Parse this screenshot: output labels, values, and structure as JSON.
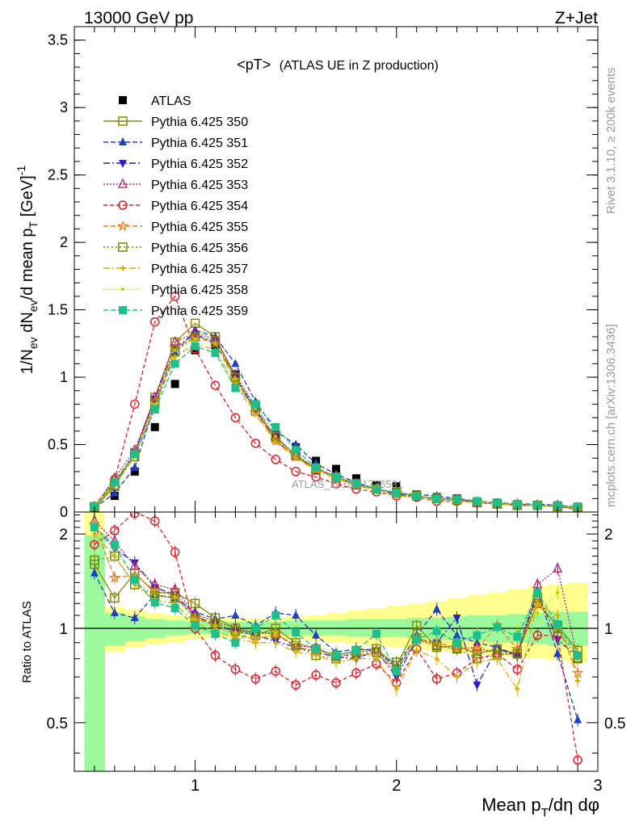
{
  "header": {
    "left": "13000 GeV pp",
    "right": "Z+Jet"
  },
  "side_labels": {
    "rivet": "Rivet 3.1.10, ≥ 200k events",
    "mcplots": "mcplots.cern.ch [arXiv:1306.3436]"
  },
  "watermark": "ATLAS_2019_I1736531",
  "chart_data": [
    {
      "type": "line",
      "panel": "main",
      "title": "<pT>",
      "subtitle": "(ATLAS UE in Z production)",
      "xlabel": "Mean p_T/dη dφ",
      "ylabel": "1/N_ev dN_ev/d mean p_T [GeV]^-1",
      "xlim": [
        0.4,
        3.0
      ],
      "ylim": [
        0,
        3.6
      ],
      "xticks": [
        1,
        2,
        3
      ],
      "yticks": [
        0,
        0.5,
        1,
        1.5,
        2,
        2.5,
        3,
        3.5
      ],
      "ytick_labels": [
        "0",
        "0.5",
        "1",
        "1.5",
        "2",
        "2.5",
        "3",
        "3.5"
      ],
      "legend_position": "top-left",
      "x": [
        0.5,
        0.6,
        0.7,
        0.8,
        0.9,
        1.0,
        1.1,
        1.2,
        1.3,
        1.4,
        1.5,
        1.6,
        1.7,
        1.8,
        1.9,
        2.0,
        2.1,
        2.2,
        2.3,
        2.4,
        2.5,
        2.6,
        2.7,
        2.8,
        2.9
      ],
      "data": {
        "name": "ATLAS",
        "color": "#000000",
        "values": [
          0.02,
          0.12,
          0.3,
          0.63,
          0.95,
          1.2,
          1.22,
          1.02,
          0.8,
          0.58,
          0.48,
          0.38,
          0.32,
          0.25,
          0.2,
          0.19,
          0.13,
          0.11,
          0.1,
          0.08,
          0.07,
          0.06,
          0.05,
          0.05,
          0.04
        ]
      },
      "series": [
        {
          "name": "Pythia 6.425 350",
          "color": "#8a8a00",
          "dash": "solid",
          "marker": "square-open",
          "values": [
            0.03,
            0.19,
            0.44,
            0.85,
            1.26,
            1.4,
            1.3,
            1.0,
            0.75,
            0.55,
            0.42,
            0.32,
            0.26,
            0.21,
            0.17,
            0.14,
            0.12,
            0.1,
            0.09,
            0.07,
            0.06,
            0.05,
            0.05,
            0.04,
            0.03
          ]
        },
        {
          "name": "Pythia 6.425 351",
          "color": "#1f3fbf",
          "dash": "6,3",
          "marker": "triangle-up",
          "values": [
            0.03,
            0.14,
            0.33,
            0.8,
            1.18,
            1.35,
            1.3,
            1.1,
            0.82,
            0.6,
            0.5,
            0.36,
            0.28,
            0.22,
            0.17,
            0.14,
            0.13,
            0.12,
            0.1,
            0.08,
            0.07,
            0.06,
            0.06,
            0.05,
            0.03
          ]
        },
        {
          "name": "Pythia 6.425 352",
          "color": "#2a1fbf",
          "dash": "8,3,2,3",
          "marker": "triangle-down",
          "values": [
            0.04,
            0.21,
            0.44,
            0.84,
            1.22,
            1.32,
            1.25,
            1.0,
            0.76,
            0.53,
            0.41,
            0.32,
            0.26,
            0.2,
            0.17,
            0.13,
            0.12,
            0.1,
            0.1,
            0.07,
            0.06,
            0.06,
            0.05,
            0.04,
            0.03
          ]
        },
        {
          "name": "Pythia 6.425 353",
          "color": "#b0207a",
          "dash": "2,2",
          "marker": "triangle-open",
          "values": [
            0.04,
            0.25,
            0.46,
            0.85,
            1.26,
            1.33,
            1.28,
            1.02,
            0.78,
            0.56,
            0.42,
            0.33,
            0.26,
            0.21,
            0.17,
            0.14,
            0.12,
            0.1,
            0.09,
            0.07,
            0.06,
            0.06,
            0.05,
            0.05,
            0.03
          ]
        },
        {
          "name": "Pythia 6.425 354",
          "color": "#e0202a",
          "dash": "5,3",
          "marker": "circle-open",
          "values": [
            0.04,
            0.24,
            0.8,
            1.41,
            1.6,
            1.21,
            0.94,
            0.7,
            0.51,
            0.39,
            0.3,
            0.26,
            0.21,
            0.17,
            0.15,
            0.12,
            0.11,
            0.08,
            0.08,
            0.07,
            0.06,
            0.05,
            0.05,
            0.04,
            0.02
          ]
        },
        {
          "name": "Pythia 6.425 355",
          "color": "#f07a1a",
          "dash": "6,3",
          "marker": "star-open",
          "values": [
            0.04,
            0.23,
            0.43,
            0.82,
            1.22,
            1.3,
            1.25,
            0.98,
            0.74,
            0.53,
            0.41,
            0.32,
            0.26,
            0.2,
            0.17,
            0.14,
            0.12,
            0.1,
            0.09,
            0.07,
            0.06,
            0.06,
            0.05,
            0.04,
            0.03
          ]
        },
        {
          "name": "Pythia 6.425 356",
          "color": "#6f8a00",
          "dash": "2,3",
          "marker": "square-open",
          "values": [
            0.04,
            0.2,
            0.41,
            0.8,
            1.19,
            1.3,
            1.27,
            1.0,
            0.78,
            0.56,
            0.42,
            0.31,
            0.25,
            0.2,
            0.17,
            0.15,
            0.12,
            0.1,
            0.09,
            0.07,
            0.06,
            0.05,
            0.05,
            0.04,
            0.03
          ]
        },
        {
          "name": "Pythia 6.425 357",
          "color": "#d4b000",
          "dash": "8,3,2,3",
          "marker": "tri-small",
          "values": [
            0.04,
            0.2,
            0.41,
            0.78,
            1.15,
            1.25,
            1.2,
            0.95,
            0.72,
            0.52,
            0.4,
            0.31,
            0.25,
            0.2,
            0.16,
            0.12,
            0.11,
            0.09,
            0.08,
            0.07,
            0.06,
            0.05,
            0.05,
            0.04,
            0.03
          ]
        },
        {
          "name": "Pythia 6.425 358",
          "color": "#b8d400",
          "dash": "1,3",
          "marker": "dot",
          "values": [
            0.04,
            0.22,
            0.43,
            0.8,
            1.2,
            1.28,
            1.25,
            0.99,
            0.77,
            0.56,
            0.43,
            0.33,
            0.27,
            0.21,
            0.17,
            0.14,
            0.12,
            0.1,
            0.09,
            0.08,
            0.06,
            0.06,
            0.05,
            0.05,
            0.03
          ]
        },
        {
          "name": "Pythia 6.425 359",
          "color": "#1fbf8a",
          "dash": "6,3",
          "marker": "square",
          "values": [
            0.04,
            0.22,
            0.43,
            0.76,
            1.1,
            1.23,
            1.18,
            0.92,
            0.8,
            0.63,
            0.46,
            0.33,
            0.26,
            0.21,
            0.17,
            0.14,
            0.12,
            0.1,
            0.09,
            0.08,
            0.07,
            0.06,
            0.05,
            0.05,
            0.04
          ]
        }
      ]
    },
    {
      "type": "line",
      "panel": "ratio",
      "ylabel": "Ratio to ATLAS",
      "xlabel": "Mean p_T/dη dφ",
      "xlim": [
        0.4,
        3.0
      ],
      "ylim": [
        0.35,
        2.35
      ],
      "xticks": [
        1,
        2,
        3
      ],
      "xtick_labels": [
        "1",
        "2",
        "3"
      ],
      "yticks": [
        0.5,
        1,
        2
      ],
      "ytick_labels": [
        "0.5",
        "1",
        "2"
      ],
      "reference_line": 1,
      "x_bins": [
        0.45,
        0.55,
        0.65,
        0.75,
        0.85,
        0.95,
        1.05,
        1.15,
        1.25,
        1.35,
        1.45,
        1.55,
        1.65,
        1.75,
        1.85,
        1.95,
        2.05,
        2.15,
        2.25,
        2.35,
        2.45,
        2.55,
        2.65,
        2.75,
        2.85,
        2.95
      ],
      "band_stat": {
        "color": "#9cfa9c",
        "low": [
          0.35,
          0.88,
          0.91,
          0.93,
          0.95,
          0.96,
          0.96,
          0.96,
          0.96,
          0.96,
          0.95,
          0.95,
          0.95,
          0.94,
          0.94,
          0.94,
          0.93,
          0.92,
          0.92,
          0.91,
          0.9,
          0.9,
          0.89,
          0.88,
          0.88
        ],
        "high": [
          1.98,
          1.12,
          1.09,
          1.07,
          1.06,
          1.05,
          1.05,
          1.05,
          1.05,
          1.05,
          1.06,
          1.06,
          1.06,
          1.07,
          1.07,
          1.07,
          1.08,
          1.08,
          1.09,
          1.1,
          1.1,
          1.11,
          1.12,
          1.13,
          1.13
        ]
      },
      "band_total": {
        "color": "#ffff90",
        "low": [
          0.35,
          0.84,
          0.87,
          0.89,
          0.9,
          0.92,
          0.93,
          0.93,
          0.93,
          0.93,
          0.92,
          0.91,
          0.9,
          0.89,
          0.88,
          0.87,
          0.86,
          0.85,
          0.84,
          0.83,
          0.82,
          0.81,
          0.8,
          0.79,
          0.78
        ],
        "high": [
          2.35,
          1.17,
          1.15,
          1.12,
          1.1,
          1.09,
          1.08,
          1.08,
          1.08,
          1.08,
          1.09,
          1.1,
          1.12,
          1.14,
          1.16,
          1.18,
          1.2,
          1.22,
          1.25,
          1.28,
          1.3,
          1.33,
          1.36,
          1.38,
          1.4
        ]
      },
      "x": [
        0.5,
        0.6,
        0.7,
        0.8,
        0.9,
        1.0,
        1.1,
        1.2,
        1.3,
        1.4,
        1.5,
        1.6,
        1.7,
        1.8,
        1.9,
        2.0,
        2.1,
        2.2,
        2.3,
        2.4,
        2.5,
        2.6,
        2.7,
        2.8,
        2.9
      ],
      "series": [
        {
          "name": "Pythia 6.425 350",
          "values": [
            1.6,
            1.25,
            1.5,
            1.3,
            1.3,
            1.2,
            1.08,
            1.0,
            0.95,
            1.0,
            0.9,
            0.86,
            0.82,
            0.85,
            0.86,
            0.76,
            1.02,
            0.87,
            0.88,
            0.83,
            0.86,
            0.83,
            1.2,
            1.02,
            0.85
          ]
        },
        {
          "name": "Pythia 6.425 351",
          "values": [
            1.5,
            1.12,
            1.08,
            1.28,
            1.25,
            1.13,
            1.07,
            1.1,
            1.02,
            1.12,
            1.1,
            0.95,
            0.84,
            0.86,
            0.85,
            0.75,
            0.95,
            1.15,
            0.95,
            0.9,
            0.87,
            0.82,
            1.32,
            0.83,
            0.51
          ]
        },
        {
          "name": "Pythia 6.425 352",
          "values": [
            2.1,
            1.8,
            1.62,
            1.35,
            1.28,
            1.1,
            1.02,
            0.98,
            0.95,
            0.91,
            0.87,
            0.84,
            0.81,
            0.8,
            0.85,
            0.7,
            0.92,
            0.9,
            1.08,
            0.66,
            0.86,
            0.82,
            1.3,
            0.92,
            0.81
          ]
        },
        {
          "name": "Pythia 6.425 353",
          "values": [
            2.2,
            1.9,
            1.58,
            1.38,
            1.33,
            1.11,
            1.05,
            1.0,
            0.97,
            0.96,
            0.88,
            0.87,
            0.81,
            0.84,
            0.85,
            0.74,
            0.92,
            0.88,
            0.86,
            0.87,
            0.83,
            0.83,
            1.38,
            1.55,
            0.8
          ]
        },
        {
          "name": "Pythia 6.425 354",
          "values": [
            1.85,
            2.05,
            2.35,
            2.2,
            1.75,
            1.0,
            0.82,
            0.74,
            0.69,
            0.73,
            0.66,
            0.71,
            0.67,
            0.72,
            0.77,
            0.67,
            0.86,
            0.69,
            0.72,
            0.8,
            0.83,
            0.74,
            0.95,
            0.95,
            0.38
          ]
        },
        {
          "name": "Pythia 6.425 355",
          "values": [
            2.15,
            1.45,
            1.48,
            1.32,
            1.27,
            1.08,
            1.02,
            0.96,
            0.92,
            0.96,
            0.87,
            0.85,
            0.82,
            0.82,
            0.83,
            0.73,
            0.93,
            0.9,
            0.87,
            0.86,
            1.02,
            0.86,
            1.2,
            1.02,
            0.72
          ]
        },
        {
          "name": "Pythia 6.425 356",
          "values": [
            1.65,
            1.7,
            1.38,
            1.27,
            1.25,
            1.08,
            1.04,
            0.98,
            0.98,
            0.96,
            0.88,
            0.82,
            0.8,
            0.83,
            0.84,
            0.78,
            0.93,
            0.88,
            0.86,
            0.8,
            0.82,
            0.83,
            1.25,
            1.0,
            0.8
          ]
        },
        {
          "name": "Pythia 6.425 357",
          "values": [
            2.0,
            1.7,
            1.38,
            1.23,
            1.2,
            1.04,
            0.98,
            0.93,
            0.9,
            0.9,
            0.84,
            0.82,
            0.78,
            0.8,
            0.8,
            0.64,
            0.85,
            0.8,
            0.7,
            0.78,
            0.8,
            0.64,
            1.2,
            1.1,
            0.68
          ]
        },
        {
          "name": "Pythia 6.425 358",
          "values": [
            2.1,
            1.8,
            1.43,
            1.27,
            1.26,
            1.07,
            1.02,
            0.97,
            0.96,
            0.97,
            0.9,
            0.87,
            0.84,
            0.84,
            0.85,
            0.73,
            0.92,
            0.93,
            0.89,
            0.96,
            0.86,
            0.98,
            1.12,
            1.3,
            0.8
          ]
        },
        {
          "name": "Pythia 6.425 359",
          "values": [
            2.1,
            1.85,
            1.43,
            1.21,
            1.16,
            1.02,
            0.96,
            0.9,
            1.0,
            1.1,
            0.97,
            0.86,
            0.82,
            0.85,
            0.96,
            0.73,
            0.92,
            0.98,
            0.9,
            0.95,
            1.01,
            0.94,
            1.3,
            1.03,
            0.82
          ]
        }
      ]
    }
  ]
}
